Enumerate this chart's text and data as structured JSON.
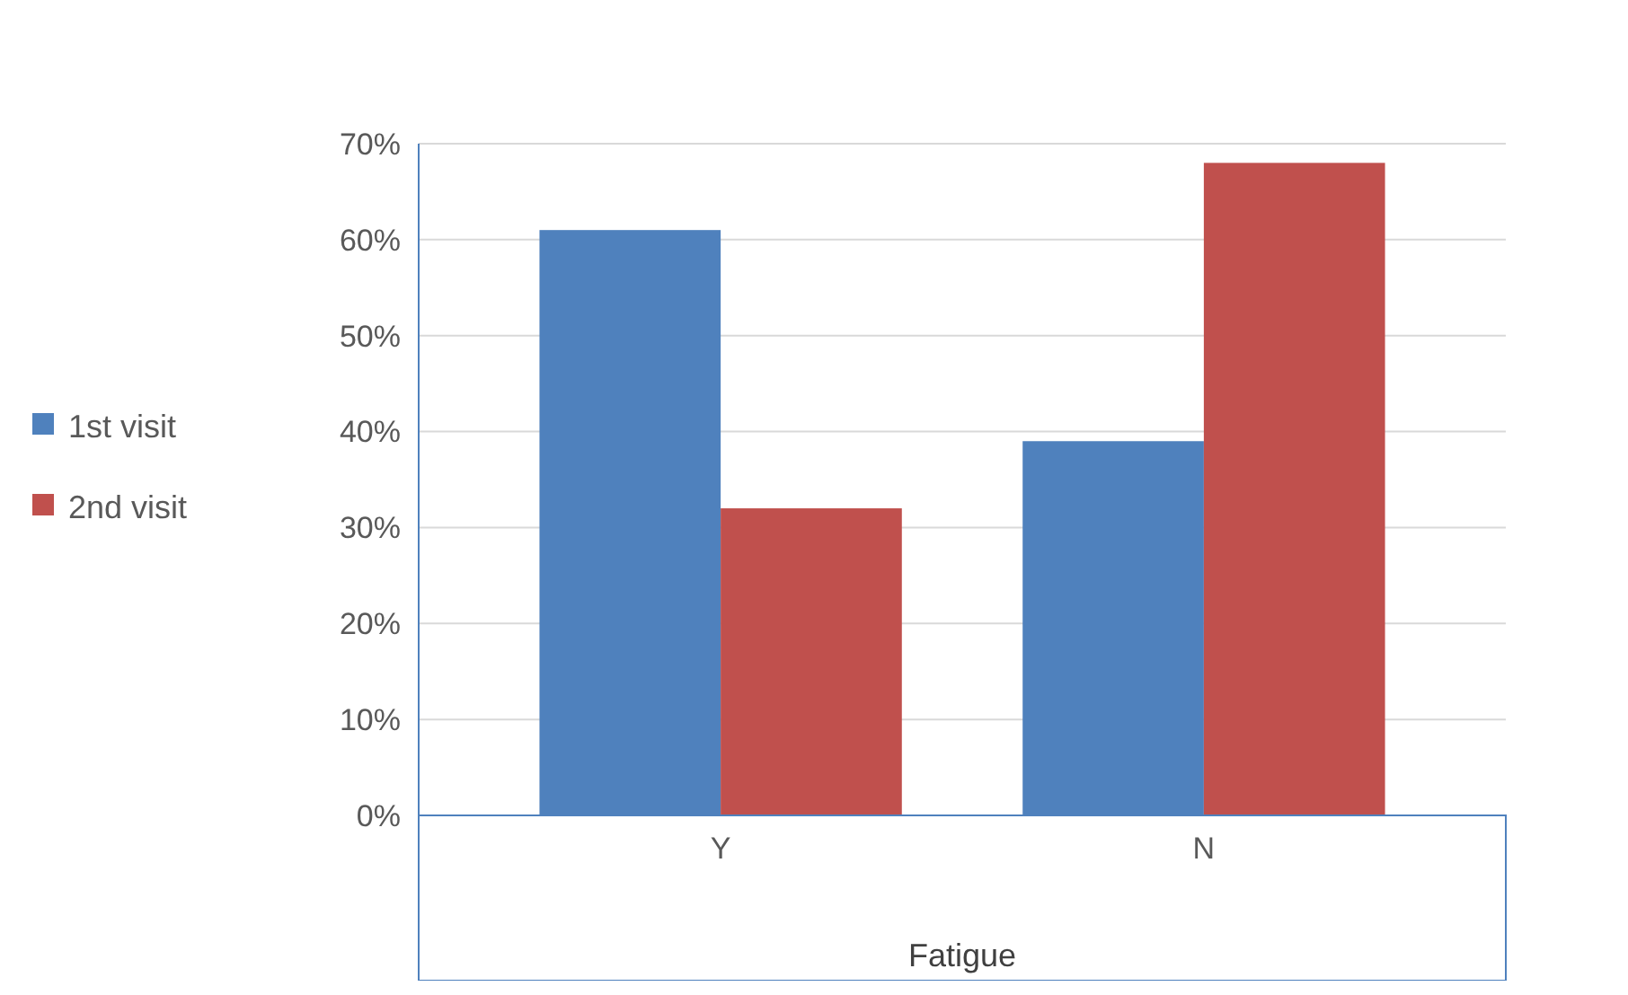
{
  "chart_data": {
    "type": "bar",
    "xlabel": "Fatigue",
    "categories": [
      "Y",
      "N"
    ],
    "series": [
      {
        "name": "1st visit",
        "color": "#4f81bd",
        "values": [
          61,
          39
        ]
      },
      {
        "name": "2nd visit",
        "color": "#c0504d",
        "values": [
          32,
          68
        ]
      }
    ],
    "ylim": [
      0,
      70
    ],
    "yticks": [
      {
        "value": 0,
        "label": "0%"
      },
      {
        "value": 10,
        "label": "10%"
      },
      {
        "value": 20,
        "label": "20%"
      },
      {
        "value": 30,
        "label": "30%"
      },
      {
        "value": 40,
        "label": "40%"
      },
      {
        "value": 50,
        "label": "50%"
      },
      {
        "value": 60,
        "label": "60%"
      },
      {
        "value": 70,
        "label": "70%"
      }
    ],
    "grid": "y",
    "legend": "left"
  }
}
